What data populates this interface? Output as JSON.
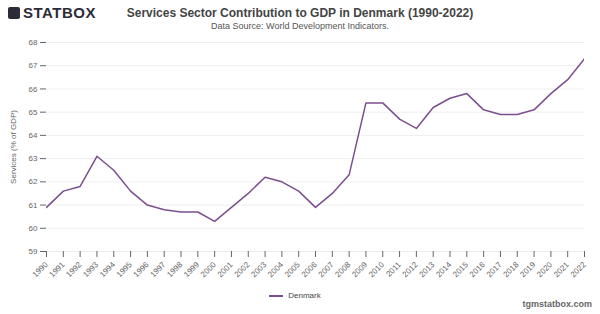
{
  "chart_data": {
    "type": "line",
    "title": "Services Sector Contribution to GDP in Denmark (1990-2022)",
    "subtitle": "Data Source: World Development Indicators.",
    "logo_text": "STATBOX",
    "watermark": "tgmstatbox.com",
    "y_label": "Services (% of GDP)",
    "x": [
      1990,
      1991,
      1992,
      1993,
      1994,
      1995,
      1996,
      1997,
      1998,
      1999,
      2000,
      2001,
      2002,
      2003,
      2004,
      2005,
      2006,
      2007,
      2008,
      2009,
      2010,
      2011,
      2012,
      2013,
      2014,
      2015,
      2016,
      2017,
      2018,
      2019,
      2020,
      2021,
      2022
    ],
    "series": [
      {
        "name": "Denmark",
        "color": "#7b4f8e",
        "values": [
          60.9,
          61.6,
          61.8,
          63.1,
          62.5,
          61.6,
          61.0,
          60.8,
          60.7,
          60.7,
          60.3,
          60.9,
          61.5,
          62.2,
          62.0,
          61.6,
          60.9,
          61.5,
          62.3,
          65.4,
          65.4,
          64.7,
          64.3,
          65.2,
          65.6,
          65.8,
          65.1,
          64.9,
          64.9,
          65.1,
          65.8,
          66.4,
          67.3
        ]
      }
    ],
    "xlim": [
      1990,
      2022
    ],
    "xticks": [
      1990,
      1991,
      1992,
      1993,
      1994,
      1995,
      1996,
      1997,
      1998,
      1999,
      2000,
      2001,
      2002,
      2003,
      2004,
      2005,
      2006,
      2007,
      2008,
      2009,
      2010,
      2011,
      2012,
      2013,
      2014,
      2015,
      2016,
      2017,
      2018,
      2019,
      2020,
      2021,
      2022
    ],
    "ylim": [
      59,
      68
    ],
    "yticks": [
      59,
      60,
      61,
      62,
      63,
      64,
      65,
      66,
      67,
      68
    ],
    "grid": true,
    "legend": "bottom"
  }
}
